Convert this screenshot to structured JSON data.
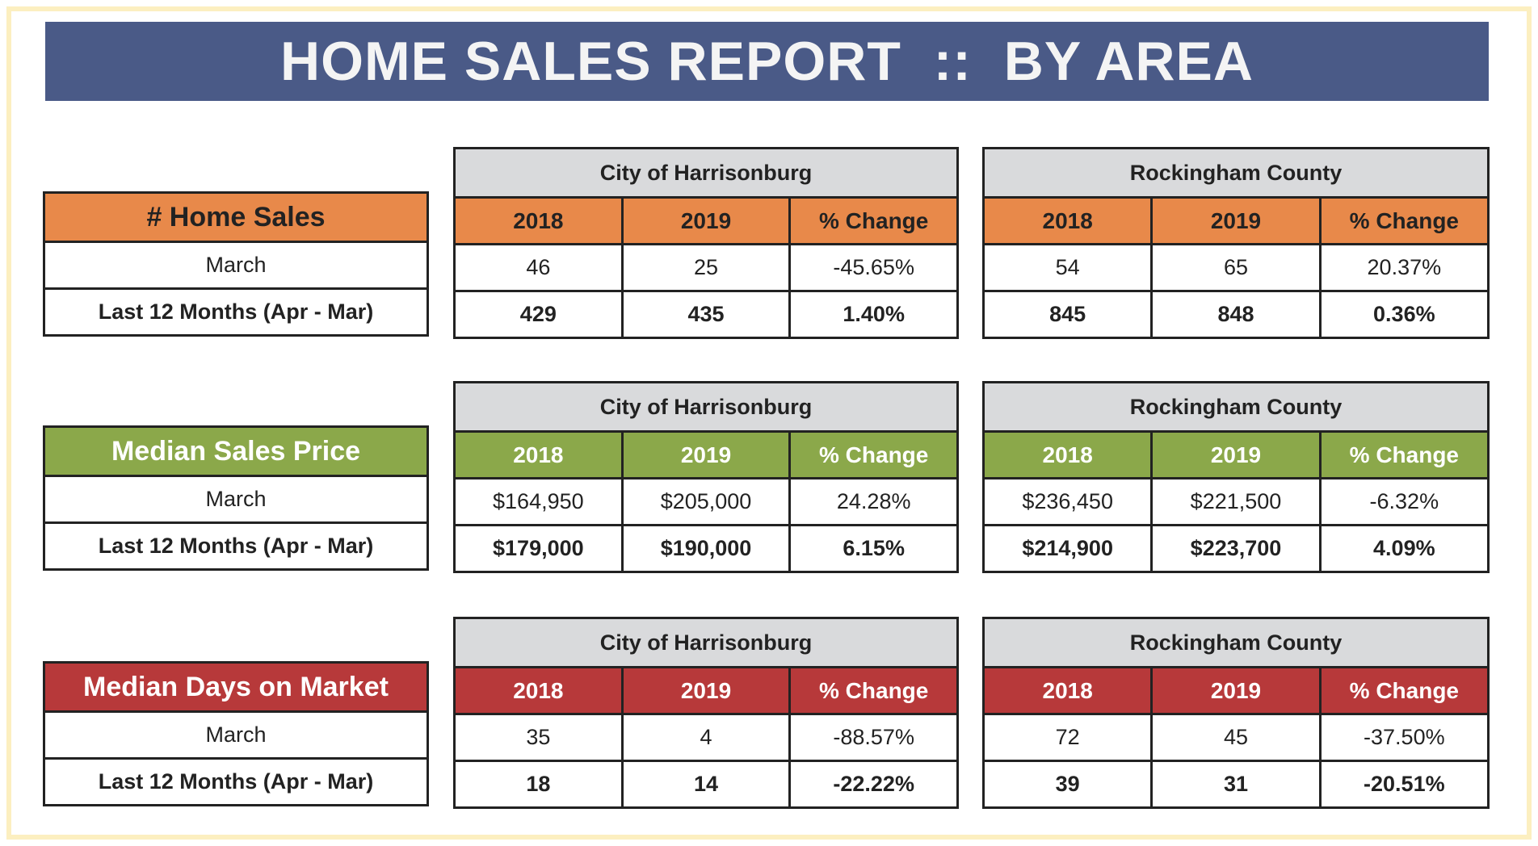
{
  "title": "HOME SALES REPORT  ::  BY AREA",
  "colors": {
    "title_bg": "#4A5A87",
    "orange": "#E8894A",
    "green": "#8BA84A",
    "red": "#B7393A",
    "gray": "#D9DADC",
    "frame": "#FCEFC0"
  },
  "areas": [
    "City of Harrisonburg",
    "Rockingham County"
  ],
  "columns": [
    "2018",
    "2019",
    "% Change"
  ],
  "row_labels": [
    "March",
    "Last 12 Months (Apr - Mar)"
  ],
  "sections": [
    {
      "label": "# Home Sales",
      "color": "#E8894A",
      "text_color": "#222222",
      "areas": [
        {
          "rows": [
            [
              "46",
              "25",
              "-45.65%"
            ],
            [
              "429",
              "435",
              "1.40%"
            ]
          ]
        },
        {
          "rows": [
            [
              "54",
              "65",
              "20.37%"
            ],
            [
              "845",
              "848",
              "0.36%"
            ]
          ]
        }
      ]
    },
    {
      "label": "Median Sales Price",
      "color": "#8BA84A",
      "text_color": "#FFFFFF",
      "areas": [
        {
          "rows": [
            [
              "$164,950",
              "$205,000",
              "24.28%"
            ],
            [
              "$179,000",
              "$190,000",
              "6.15%"
            ]
          ]
        },
        {
          "rows": [
            [
              "$236,450",
              "$221,500",
              "-6.32%"
            ],
            [
              "$214,900",
              "$223,700",
              "4.09%"
            ]
          ]
        }
      ]
    },
    {
      "label": "Median Days on Market",
      "color": "#B7393A",
      "text_color": "#FFFFFF",
      "areas": [
        {
          "rows": [
            [
              "35",
              "4",
              "-88.57%"
            ],
            [
              "18",
              "14",
              "-22.22%"
            ]
          ]
        },
        {
          "rows": [
            [
              "72",
              "45",
              "-37.50%"
            ],
            [
              "39",
              "31",
              "-20.51%"
            ]
          ]
        }
      ]
    }
  ]
}
